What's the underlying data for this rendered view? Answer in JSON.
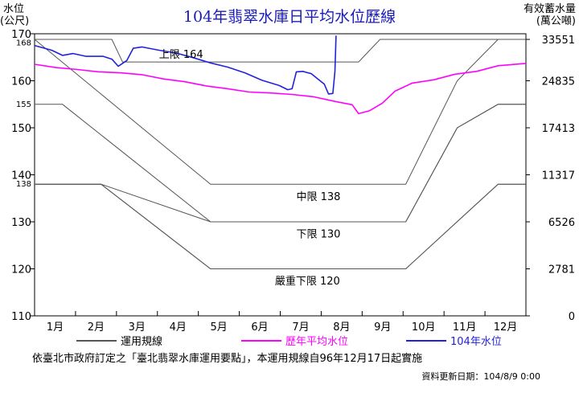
{
  "chart_data": {
    "type": "line",
    "title": "104年翡翠水庫日平均水位歷線",
    "ylabel_left": [
      "水位",
      "(公尺)"
    ],
    "ylabel_right": [
      "有效蓄水量",
      "(萬公噸)"
    ],
    "ylim": [
      110,
      170
    ],
    "y_ticks": [
      110,
      120,
      130,
      140,
      150,
      160,
      170
    ],
    "y_minor_ticks": [
      168,
      155,
      138
    ],
    "right_ticks": [
      {
        "level": 110,
        "label": "0"
      },
      {
        "level": 120,
        "label": "2781"
      },
      {
        "level": 130,
        "label": "6526"
      },
      {
        "level": 140,
        "label": "11317"
      },
      {
        "level": 150,
        "label": "17413"
      },
      {
        "level": 160,
        "label": "24835"
      },
      {
        "level": 168.8,
        "label": "33551"
      }
    ],
    "x_months": [
      "1月",
      "2月",
      "3月",
      "4月",
      "5月",
      "6月",
      "7月",
      "8月",
      "9月",
      "10月",
      "11月",
      "12月"
    ],
    "x_range_days": [
      0,
      365
    ],
    "rule_curves": [
      {
        "label": "上限  164",
        "label_at": [
          5.8,
          165.7
        ],
        "points": [
          [
            0,
            168.8
          ],
          [
            3.6,
            168.8
          ],
          [
            4.1,
            164
          ],
          [
            15.1,
            164
          ],
          [
            16.1,
            168.8
          ],
          [
            22.9,
            168.8
          ]
        ]
      },
      {
        "label": "",
        "label_at": null,
        "points": [
          [
            0,
            168.8
          ],
          [
            8.2,
            138
          ],
          [
            17.3,
            138
          ],
          [
            19.7,
            160
          ],
          [
            21.6,
            168.8
          ],
          [
            22.9,
            168.8
          ]
        ]
      },
      {
        "label": "",
        "label_at": null,
        "points": [
          [
            0,
            155
          ],
          [
            1.3,
            155
          ],
          [
            8.2,
            130
          ],
          [
            17.3,
            130
          ],
          [
            19.7,
            150
          ],
          [
            21.6,
            155
          ],
          [
            22.9,
            155
          ]
        ]
      },
      {
        "label": "中限  138",
        "label_at": [
          12.2,
          135.5
        ],
        "points": [
          [
            0,
            138
          ],
          [
            3.1,
            138
          ],
          [
            8.2,
            120
          ],
          [
            17.3,
            120
          ],
          [
            21.6,
            138
          ],
          [
            22.9,
            138
          ]
        ]
      },
      {
        "label": "下限  130",
        "label_at": [
          12.2,
          127.5
        ],
        "points": [
          [
            0,
            138
          ],
          [
            3.1,
            138
          ],
          [
            8.2,
            130
          ],
          [
            17.3,
            130
          ],
          [
            19.7,
            150
          ],
          [
            21.6,
            155
          ],
          [
            22.9,
            155
          ]
        ]
      },
      {
        "label": "嚴重下限  120",
        "label_at": [
          11.2,
          117.5
        ],
        "points": [
          [
            0,
            138
          ],
          [
            3.1,
            138
          ],
          [
            8.2,
            120
          ],
          [
            17.3,
            120
          ],
          [
            21.6,
            138
          ],
          [
            22.9,
            138
          ]
        ]
      }
    ],
    "series": [
      {
        "name": "運用規線",
        "color": "#555555"
      },
      {
        "name": "歷年平均水位",
        "color": "#ff00ff",
        "points": [
          [
            0,
            163.5
          ],
          [
            1,
            162.8
          ],
          [
            2,
            162.4
          ],
          [
            3,
            161.9
          ],
          [
            4,
            161.7
          ],
          [
            5,
            161.3
          ],
          [
            6,
            160.4
          ],
          [
            7,
            159.8
          ],
          [
            8,
            158.9
          ],
          [
            9,
            158.3
          ],
          [
            10,
            157.6
          ],
          [
            11,
            157.4
          ],
          [
            12,
            157.1
          ],
          [
            13,
            156.6
          ],
          [
            14,
            155.6
          ],
          [
            14.8,
            154.9
          ],
          [
            15.1,
            153.0
          ],
          [
            15.6,
            153.6
          ],
          [
            16.2,
            155.2
          ],
          [
            16.8,
            157.8
          ],
          [
            17.6,
            159.5
          ],
          [
            18.6,
            160.2
          ],
          [
            19.6,
            161.4
          ],
          [
            20.6,
            162.0
          ],
          [
            21.6,
            163.2
          ],
          [
            22.9,
            163.7
          ]
        ]
      },
      {
        "name": "104年水位",
        "color": "#2222dd",
        "points": [
          [
            0,
            167.5
          ],
          [
            0.8,
            166.5
          ],
          [
            1.3,
            165.4
          ],
          [
            1.8,
            165.8
          ],
          [
            2.4,
            165.2
          ],
          [
            3.2,
            165.2
          ],
          [
            3.6,
            164.6
          ],
          [
            3.9,
            163.1
          ],
          [
            4.3,
            164.3
          ],
          [
            4.6,
            166.9
          ],
          [
            5.0,
            167.2
          ],
          [
            5.8,
            166.5
          ],
          [
            6.6,
            165.9
          ],
          [
            7.4,
            164.9
          ],
          [
            8.2,
            163.8
          ],
          [
            9.0,
            162.9
          ],
          [
            9.8,
            161.7
          ],
          [
            10.6,
            160.1
          ],
          [
            11.4,
            159.0
          ],
          [
            11.8,
            158.1
          ],
          [
            12.0,
            158.3
          ],
          [
            12.2,
            161.9
          ],
          [
            12.5,
            162.0
          ],
          [
            12.9,
            161.5
          ],
          [
            13.2,
            160.4
          ],
          [
            13.5,
            159.3
          ],
          [
            13.7,
            157.2
          ],
          [
            13.9,
            157.3
          ],
          [
            14.0,
            162.0
          ],
          [
            14.05,
            169.6
          ]
        ]
      }
    ],
    "legend": [
      {
        "name": "運用規線",
        "color": "#555555"
      },
      {
        "name": "歷年平均水位",
        "color": "#ff00ff"
      },
      {
        "name": "104年水位",
        "color": "#2222dd"
      }
    ],
    "legend_placement": "bottom",
    "grid": false
  },
  "footer": {
    "note": "依臺北市政府訂定之「臺北翡翠水庫運用要點」，本運用規線自96年12月17日起實施",
    "update": "資料更新日期：104/8/9 0:00"
  }
}
